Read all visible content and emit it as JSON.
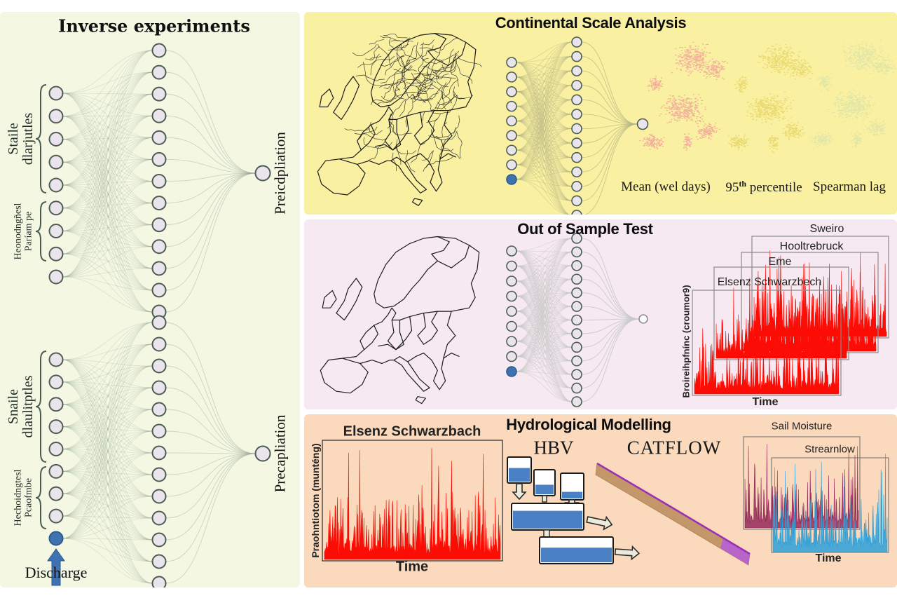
{
  "left_panel": {
    "title": "Inverse experiments",
    "discharge_label": "Discharge",
    "networks": [
      {
        "state_label_lines": [
          "Staile",
          "dlarjutles"
        ],
        "param_label_lines": [
          "Heonodngñesl",
          "Paríam pe"
        ],
        "output_label": "Preicdpliation"
      },
      {
        "state_label_lines": [
          "Snaile",
          "dlaulitptles"
        ],
        "param_label_lines": [
          "Hechoidngtesl",
          "Pcaofmbe"
        ],
        "output_label": "Precapliation"
      }
    ]
  },
  "continental_panel": {
    "title": "Continental Scale Analysis",
    "scatter_labels": {
      "mean": "Mean (wel days)",
      "p95_base": "95",
      "p95_sup": "th",
      "p95_rest": " percentile",
      "spearman": "Spearman lag"
    }
  },
  "oos_panel": {
    "title": "Out of Sample Test",
    "series_labels": [
      "Elsenz Schwarzbech",
      "Eme",
      "Hooltrebruck",
      "Sweiro"
    ],
    "ylabel": "Broireihpfnínc (croumor9)",
    "xlabel": "Time"
  },
  "hydro_panel": {
    "title": "Hydrological Modelling",
    "precip_chart": {
      "title": "Elsenz Schwarzbach",
      "ylabel": "Praohntiotom (munténg)",
      "xlabel": "Time"
    },
    "model_hbv": "HBV",
    "model_catflow": "CATFLOW",
    "output_charts": {
      "soil": "Sail Moisture",
      "stream": "Strearnlow",
      "xlabel": "Time"
    }
  },
  "colors": {
    "left_bg": "#f4f8e3",
    "continental_bg": "#f9f0a1",
    "oos_bg": "#f7e9f1",
    "hydro_bg": "#fbd9bd",
    "series_red": "#fb0d05",
    "soil_series": "#96285a",
    "stream_series": "#2d9fd8",
    "input_blue": "#3f72b0",
    "node_fill": "#eae5ec",
    "node_stroke": "#4c5b52",
    "left_link": "#9dab97",
    "yellow_link": "#b4b486",
    "pink_link": "#c8c8c8",
    "scatter_pink": "#ee6f96",
    "scatter_yellow": "#d4be32",
    "scatter_teal": "#8fc4ba",
    "water_blue": "#4a80c4",
    "catflow_tan": "#c4976a",
    "catflow_purple": "#9b30b5"
  }
}
